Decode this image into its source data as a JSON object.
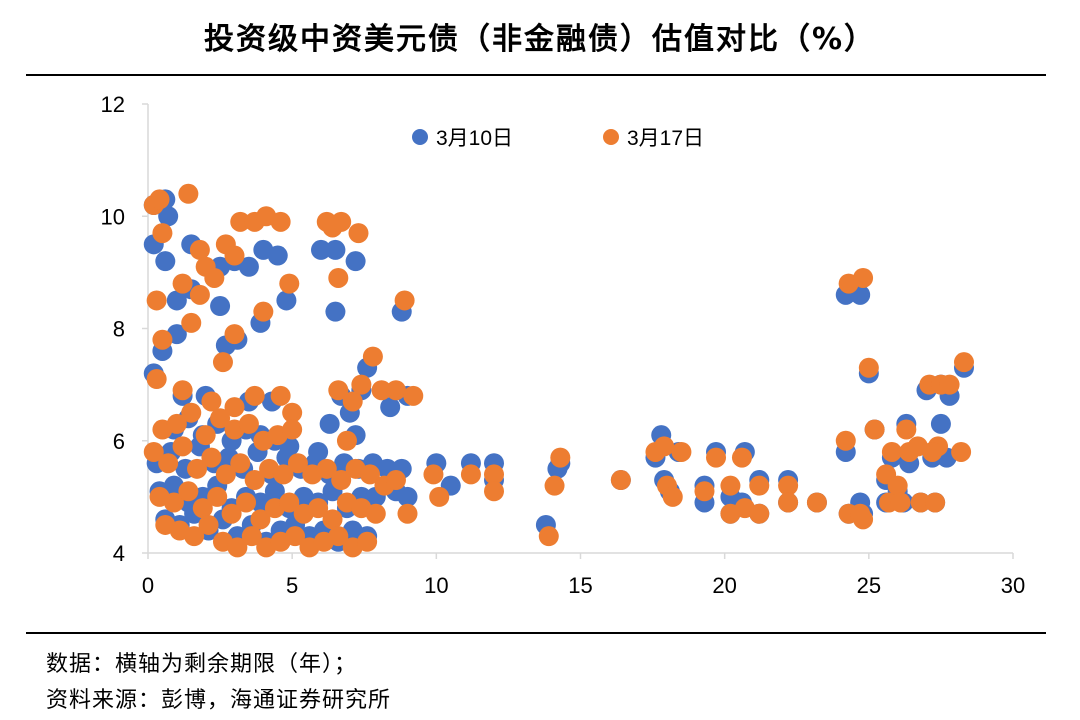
{
  "chart_data": {
    "type": "scatter",
    "title": "投资级中资美元债（非金融债）估值对比（%）",
    "xlabel": "",
    "ylabel": "",
    "xlim": [
      0,
      30
    ],
    "ylim": [
      4,
      12
    ],
    "xticks": [
      0,
      5,
      10,
      15,
      20,
      25,
      30
    ],
    "yticks": [
      4,
      6,
      8,
      10,
      12
    ],
    "grid": false,
    "legend_position": "top",
    "series": [
      {
        "name": "3月10日",
        "color": "#4472C4",
        "points": [
          [
            0.2,
            10.2
          ],
          [
            0.6,
            10.3
          ],
          [
            0.7,
            10.0
          ],
          [
            0.2,
            9.5
          ],
          [
            0.6,
            9.2
          ],
          [
            1.5,
            9.5
          ],
          [
            2.5,
            9.1
          ],
          [
            3.0,
            9.2
          ],
          [
            3.5,
            9.1
          ],
          [
            4.0,
            9.4
          ],
          [
            4.5,
            9.3
          ],
          [
            6.0,
            9.4
          ],
          [
            6.5,
            9.4
          ],
          [
            7.2,
            9.2
          ],
          [
            1.0,
            8.5
          ],
          [
            1.5,
            8.7
          ],
          [
            2.5,
            8.4
          ],
          [
            4.8,
            8.5
          ],
          [
            6.5,
            8.3
          ],
          [
            8.8,
            8.3
          ],
          [
            3.9,
            8.1
          ],
          [
            1.0,
            7.9
          ],
          [
            0.5,
            7.6
          ],
          [
            2.7,
            7.7
          ],
          [
            3.1,
            7.8
          ],
          [
            7.6,
            7.3
          ],
          [
            0.2,
            7.2
          ],
          [
            1.2,
            6.8
          ],
          [
            2.0,
            6.8
          ],
          [
            3.5,
            6.7
          ],
          [
            4.3,
            6.7
          ],
          [
            6.7,
            6.8
          ],
          [
            7.0,
            6.5
          ],
          [
            7.4,
            6.9
          ],
          [
            8.4,
            6.6
          ],
          [
            9.0,
            6.8
          ],
          [
            6.3,
            6.3
          ],
          [
            7.2,
            6.1
          ],
          [
            0.3,
            5.6
          ],
          [
            0.8,
            5.8
          ],
          [
            1.3,
            5.5
          ],
          [
            1.8,
            5.9
          ],
          [
            2.3,
            5.6
          ],
          [
            2.8,
            5.7
          ],
          [
            3.3,
            5.5
          ],
          [
            3.8,
            5.8
          ],
          [
            4.3,
            5.4
          ],
          [
            4.8,
            5.7
          ],
          [
            5.3,
            5.5
          ],
          [
            5.8,
            5.6
          ],
          [
            6.3,
            5.4
          ],
          [
            6.8,
            5.6
          ],
          [
            7.3,
            5.5
          ],
          [
            7.8,
            5.6
          ],
          [
            8.3,
            5.5
          ],
          [
            8.8,
            5.5
          ],
          [
            0.4,
            5.1
          ],
          [
            0.9,
            5.2
          ],
          [
            1.4,
            4.9
          ],
          [
            1.9,
            5.0
          ],
          [
            2.4,
            5.2
          ],
          [
            2.9,
            4.8
          ],
          [
            3.4,
            5.0
          ],
          [
            3.9,
            4.9
          ],
          [
            4.4,
            5.1
          ],
          [
            4.9,
            4.8
          ],
          [
            5.4,
            5.0
          ],
          [
            5.9,
            4.9
          ],
          [
            6.4,
            5.1
          ],
          [
            6.9,
            4.8
          ],
          [
            7.4,
            5.0
          ],
          [
            7.9,
            5.0
          ],
          [
            8.6,
            5.1
          ],
          [
            9.0,
            5.0
          ],
          [
            0.6,
            4.6
          ],
          [
            1.1,
            4.5
          ],
          [
            1.6,
            4.7
          ],
          [
            2.1,
            4.4
          ],
          [
            2.6,
            4.6
          ],
          [
            3.1,
            4.3
          ],
          [
            3.6,
            4.5
          ],
          [
            4.1,
            4.2
          ],
          [
            4.6,
            4.4
          ],
          [
            5.1,
            4.5
          ],
          [
            5.6,
            4.3
          ],
          [
            6.1,
            4.4
          ],
          [
            6.6,
            4.2
          ],
          [
            7.1,
            4.4
          ],
          [
            7.6,
            4.3
          ],
          [
            0.9,
            6.2
          ],
          [
            1.4,
            6.4
          ],
          [
            1.9,
            6.1
          ],
          [
            2.4,
            6.3
          ],
          [
            2.9,
            6.0
          ],
          [
            3.4,
            6.2
          ],
          [
            3.9,
            6.1
          ],
          [
            4.4,
            6.0
          ],
          [
            4.9,
            5.9
          ],
          [
            5.9,
            5.8
          ],
          [
            10.0,
            5.6
          ],
          [
            10.5,
            5.2
          ],
          [
            11.2,
            5.6
          ],
          [
            12.0,
            5.6
          ],
          [
            12.0,
            5.3
          ],
          [
            13.8,
            4.5
          ],
          [
            14.2,
            5.5
          ],
          [
            14.3,
            5.6
          ],
          [
            16.4,
            5.3
          ],
          [
            17.6,
            5.7
          ],
          [
            17.8,
            6.1
          ],
          [
            17.9,
            5.3
          ],
          [
            18.1,
            5.1
          ],
          [
            18.4,
            5.8
          ],
          [
            19.3,
            5.2
          ],
          [
            19.3,
            4.9
          ],
          [
            19.7,
            5.8
          ],
          [
            20.2,
            5.0
          ],
          [
            20.2,
            4.7
          ],
          [
            20.7,
            5.8
          ],
          [
            20.6,
            4.9
          ],
          [
            21.2,
            5.3
          ],
          [
            21.2,
            4.7
          ],
          [
            22.2,
            5.3
          ],
          [
            22.2,
            4.9
          ],
          [
            23.2,
            4.9
          ],
          [
            24.2,
            8.6
          ],
          [
            24.7,
            8.6
          ],
          [
            25.0,
            7.2
          ],
          [
            24.2,
            5.8
          ],
          [
            24.3,
            4.7
          ],
          [
            24.7,
            4.9
          ],
          [
            24.8,
            4.7
          ],
          [
            25.2,
            6.2
          ],
          [
            25.6,
            5.3
          ],
          [
            25.8,
            5.7
          ],
          [
            25.6,
            4.9
          ],
          [
            26.0,
            5.1
          ],
          [
            26.2,
            4.9
          ],
          [
            26.3,
            6.3
          ],
          [
            26.4,
            5.6
          ],
          [
            26.8,
            4.9
          ],
          [
            27.2,
            5.7
          ],
          [
            27.3,
            4.9
          ],
          [
            27.5,
            6.3
          ],
          [
            27.7,
            5.7
          ],
          [
            27.0,
            6.9
          ],
          [
            27.8,
            6.8
          ],
          [
            28.3,
            7.3
          ],
          [
            27.5,
            7.0
          ]
        ]
      },
      {
        "name": "3月17日",
        "color": "#ED7D31",
        "points": [
          [
            0.2,
            10.2
          ],
          [
            0.4,
            10.3
          ],
          [
            1.4,
            10.4
          ],
          [
            0.5,
            9.7
          ],
          [
            1.8,
            9.4
          ],
          [
            2.7,
            9.5
          ],
          [
            3.2,
            9.9
          ],
          [
            3.7,
            9.9
          ],
          [
            4.1,
            10.0
          ],
          [
            4.6,
            9.9
          ],
          [
            6.2,
            9.9
          ],
          [
            6.7,
            9.9
          ],
          [
            7.3,
            9.7
          ],
          [
            6.4,
            9.8
          ],
          [
            1.2,
            8.8
          ],
          [
            1.8,
            8.6
          ],
          [
            2.0,
            9.1
          ],
          [
            2.3,
            8.9
          ],
          [
            3.0,
            9.3
          ],
          [
            4.9,
            8.8
          ],
          [
            6.6,
            8.9
          ],
          [
            8.9,
            8.5
          ],
          [
            0.3,
            8.5
          ],
          [
            4.0,
            8.3
          ],
          [
            1.5,
            8.1
          ],
          [
            0.5,
            7.8
          ],
          [
            3.0,
            7.9
          ],
          [
            2.6,
            7.4
          ],
          [
            7.8,
            7.5
          ],
          [
            0.3,
            7.1
          ],
          [
            1.2,
            6.9
          ],
          [
            2.2,
            6.7
          ],
          [
            3.0,
            6.6
          ],
          [
            3.7,
            6.8
          ],
          [
            4.6,
            6.8
          ],
          [
            6.6,
            6.9
          ],
          [
            7.1,
            6.7
          ],
          [
            7.4,
            7.0
          ],
          [
            8.1,
            6.9
          ],
          [
            8.6,
            6.9
          ],
          [
            9.2,
            6.8
          ],
          [
            5.0,
            6.5
          ],
          [
            6.9,
            6.0
          ],
          [
            0.5,
            6.2
          ],
          [
            1.0,
            6.3
          ],
          [
            1.5,
            6.5
          ],
          [
            2.0,
            6.1
          ],
          [
            2.5,
            6.4
          ],
          [
            3.0,
            6.2
          ],
          [
            3.5,
            6.3
          ],
          [
            4.0,
            6.0
          ],
          [
            4.5,
            6.1
          ],
          [
            5.0,
            6.2
          ],
          [
            0.2,
            5.8
          ],
          [
            0.7,
            5.6
          ],
          [
            1.2,
            5.9
          ],
          [
            1.7,
            5.5
          ],
          [
            2.2,
            5.7
          ],
          [
            2.7,
            5.4
          ],
          [
            3.2,
            5.6
          ],
          [
            3.7,
            5.3
          ],
          [
            4.2,
            5.5
          ],
          [
            4.7,
            5.4
          ],
          [
            5.2,
            5.6
          ],
          [
            5.7,
            5.4
          ],
          [
            6.2,
            5.5
          ],
          [
            6.7,
            5.3
          ],
          [
            7.2,
            5.5
          ],
          [
            7.7,
            5.4
          ],
          [
            8.2,
            5.2
          ],
          [
            8.6,
            5.3
          ],
          [
            0.4,
            5.0
          ],
          [
            0.9,
            4.9
          ],
          [
            1.4,
            5.1
          ],
          [
            1.9,
            4.8
          ],
          [
            2.4,
            5.0
          ],
          [
            2.9,
            4.7
          ],
          [
            3.4,
            4.9
          ],
          [
            3.9,
            4.6
          ],
          [
            4.4,
            4.8
          ],
          [
            4.9,
            4.9
          ],
          [
            5.4,
            4.7
          ],
          [
            5.9,
            4.8
          ],
          [
            6.4,
            4.6
          ],
          [
            6.9,
            4.9
          ],
          [
            7.4,
            4.8
          ],
          [
            7.9,
            4.7
          ],
          [
            9.0,
            4.7
          ],
          [
            0.6,
            4.5
          ],
          [
            1.1,
            4.4
          ],
          [
            1.6,
            4.3
          ],
          [
            2.1,
            4.5
          ],
          [
            2.6,
            4.2
          ],
          [
            3.1,
            4.1
          ],
          [
            3.6,
            4.3
          ],
          [
            4.1,
            4.1
          ],
          [
            4.6,
            4.2
          ],
          [
            5.1,
            4.3
          ],
          [
            5.6,
            4.1
          ],
          [
            6.1,
            4.2
          ],
          [
            6.6,
            4.3
          ],
          [
            7.1,
            4.1
          ],
          [
            7.6,
            4.2
          ],
          [
            9.9,
            5.4
          ],
          [
            10.1,
            5.0
          ],
          [
            11.2,
            5.4
          ],
          [
            12.0,
            5.4
          ],
          [
            12.0,
            5.1
          ],
          [
            13.9,
            4.3
          ],
          [
            14.1,
            5.2
          ],
          [
            14.3,
            5.7
          ],
          [
            16.4,
            5.3
          ],
          [
            17.6,
            5.8
          ],
          [
            17.9,
            5.9
          ],
          [
            18.0,
            5.2
          ],
          [
            18.2,
            5.0
          ],
          [
            18.5,
            5.8
          ],
          [
            19.3,
            5.1
          ],
          [
            19.7,
            5.7
          ],
          [
            20.2,
            5.2
          ],
          [
            20.2,
            4.7
          ],
          [
            20.6,
            5.7
          ],
          [
            20.7,
            4.8
          ],
          [
            21.2,
            5.2
          ],
          [
            21.2,
            4.7
          ],
          [
            22.2,
            5.2
          ],
          [
            22.2,
            4.9
          ],
          [
            23.2,
            4.9
          ],
          [
            24.3,
            8.8
          ],
          [
            24.8,
            8.9
          ],
          [
            25.0,
            7.3
          ],
          [
            24.2,
            6.0
          ],
          [
            24.3,
            4.7
          ],
          [
            24.7,
            4.7
          ],
          [
            24.8,
            4.6
          ],
          [
            25.2,
            6.2
          ],
          [
            25.6,
            5.4
          ],
          [
            25.8,
            5.8
          ],
          [
            25.7,
            4.9
          ],
          [
            26.0,
            5.2
          ],
          [
            26.1,
            4.9
          ],
          [
            26.3,
            6.2
          ],
          [
            26.4,
            5.8
          ],
          [
            26.7,
            5.9
          ],
          [
            26.8,
            4.9
          ],
          [
            27.3,
            4.9
          ],
          [
            27.4,
            5.9
          ],
          [
            27.2,
            5.8
          ],
          [
            28.2,
            5.8
          ],
          [
            27.1,
            7.0
          ],
          [
            27.5,
            7.0
          ],
          [
            27.8,
            7.0
          ],
          [
            28.3,
            7.4
          ]
        ]
      }
    ]
  },
  "footnote": {
    "line1": "数据：横轴为剩余期限（年）；",
    "line2": "资料来源：彭博，海通证券研究所"
  }
}
